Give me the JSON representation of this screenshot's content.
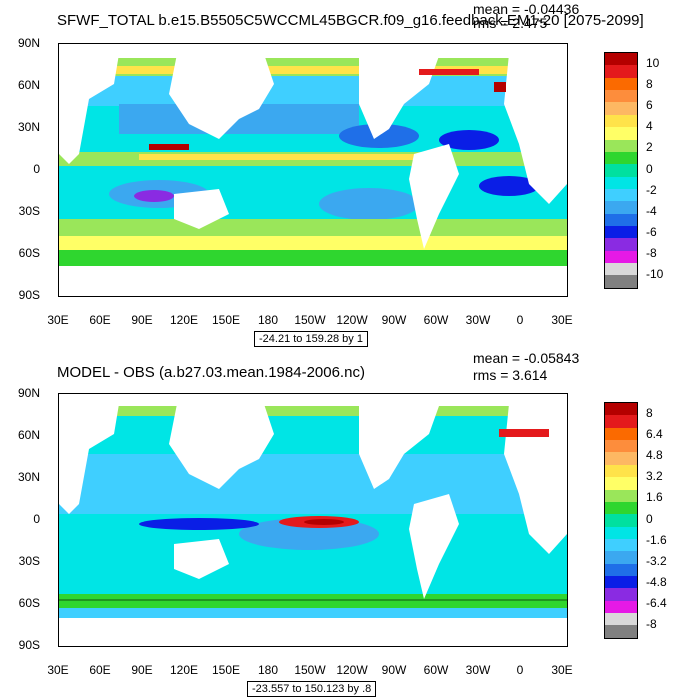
{
  "panels": [
    {
      "title": "SFWF_TOTAL b.e15.B5505C5WCCML45BGCR.f09_g16.feedback.EM1-20 [2075-2099]",
      "mean": "mean = -0.04436",
      "rms": "rms = 2.475",
      "range": "-24.21 to 159.28 by 1",
      "colorbar": {
        "labels": [
          "10",
          "8",
          "6",
          "4",
          "2",
          "0",
          "-2",
          "-4",
          "-6",
          "-8",
          "-10"
        ],
        "colors": [
          "#b40000",
          "#e41a1c",
          "#fb6a00",
          "#fd8d3c",
          "#fdb863",
          "#ffe34a",
          "#ffff66",
          "#9ae65a",
          "#2fd62f",
          "#00e0a0",
          "#00e5e5",
          "#3fcfff",
          "#3ba8f0",
          "#1f6fe8",
          "#0a1ee6",
          "#8a2be2",
          "#e619e6",
          "#d9d9d9",
          "#808080"
        ]
      }
    },
    {
      "title": "MODEL - OBS (a.b27.03.mean.1984-2006.nc)",
      "mean": "mean = -0.05843",
      "rms": "rms = 3.614",
      "range": "-23.557 to 150.123 by .8",
      "colorbar": {
        "labels": [
          "8",
          "6.4",
          "4.8",
          "3.2",
          "1.6",
          "0",
          "-1.6",
          "-3.2",
          "-4.8",
          "-6.4",
          "-8"
        ],
        "colors": [
          "#b40000",
          "#e41a1c",
          "#fb6a00",
          "#fd8d3c",
          "#fdb863",
          "#ffe34a",
          "#ffff66",
          "#9ae65a",
          "#2fd62f",
          "#00e0a0",
          "#00e5e5",
          "#3fcfff",
          "#3ba8f0",
          "#1f6fe8",
          "#0a1ee6",
          "#8a2be2",
          "#e619e6",
          "#d9d9d9",
          "#808080"
        ]
      }
    }
  ],
  "axes": {
    "lat_labels": [
      "90N",
      "60N",
      "30N",
      "0",
      "30S",
      "60S",
      "90S"
    ],
    "lon_labels": [
      "30E",
      "60E",
      "90E",
      "120E",
      "150E",
      "180",
      "150W",
      "120W",
      "90W",
      "60W",
      "30W",
      "0",
      "30E"
    ]
  },
  "colors": {
    "ocean_base": "#00e5e5",
    "land": "#ffffff"
  }
}
